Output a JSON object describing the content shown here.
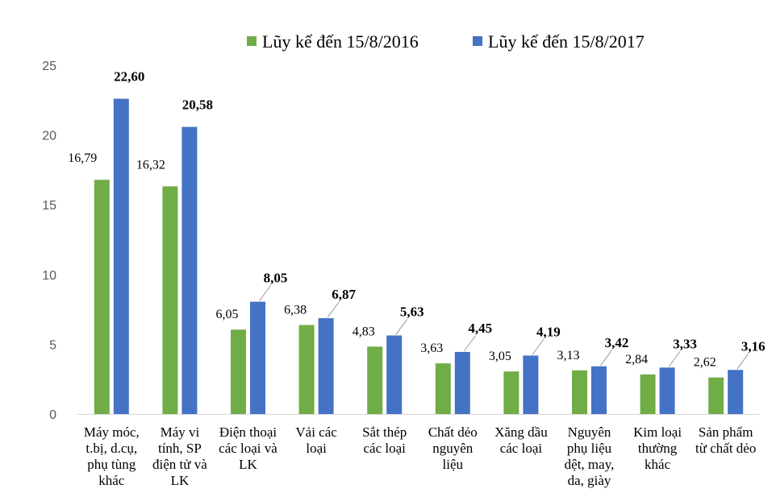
{
  "chart_data": {
    "type": "bar",
    "title": "",
    "xlabel": "",
    "ylabel": "",
    "ylim": [
      0,
      25
    ],
    "yticks": [
      0,
      5,
      10,
      15,
      20,
      25
    ],
    "grid": false,
    "legend_position": "top-center",
    "categories": [
      [
        "Máy móc,",
        "t.bị, d.cụ,",
        "phụ tùng",
        "khác"
      ],
      [
        "Máy vi",
        "tính, SP",
        "điện tử và",
        "LK"
      ],
      [
        "Điện thoại",
        "các loại và",
        "LK"
      ],
      [
        "Vải các",
        "loại"
      ],
      [
        "Sắt thép",
        "các loại"
      ],
      [
        "Chất dẻo",
        "nguyên",
        "liệu"
      ],
      [
        "Xăng dầu",
        "các loại"
      ],
      [
        "Nguyên",
        "phụ liệu",
        "dệt, may,",
        "da, giày"
      ],
      [
        "Kim loại",
        "thường",
        "khác"
      ],
      [
        "Sản phẩm",
        "từ chất dẻo"
      ]
    ],
    "series": [
      {
        "name": "Lũy kế đến 15/8/2016",
        "color": "#70ad47",
        "values": [
          16.79,
          16.32,
          6.05,
          6.38,
          4.83,
          3.63,
          3.05,
          3.13,
          2.84,
          2.62
        ],
        "labels": [
          "16,79",
          "16,32",
          "6,05",
          "6,38",
          "4,83",
          "3,63",
          "3,05",
          "3,13",
          "2,84",
          "2,62"
        ]
      },
      {
        "name": "Lũy kế đến 15/8/2017",
        "color": "#4472c4",
        "values": [
          22.6,
          20.58,
          8.05,
          6.87,
          5.63,
          4.45,
          4.19,
          3.42,
          3.33,
          3.16
        ],
        "labels": [
          "22,60",
          "20,58",
          "8,05",
          "6,87",
          "5,63",
          "4,45",
          "4,19",
          "3,42",
          "3,33",
          "3,16"
        ]
      }
    ]
  }
}
